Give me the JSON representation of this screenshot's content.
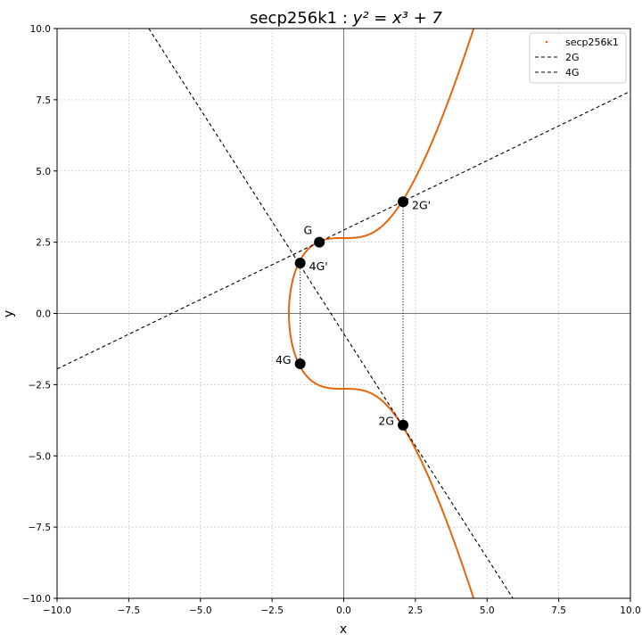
{
  "chart_data": {
    "type": "line",
    "title_main": "secp256k1 : ",
    "title_eq": "y² = x³ + 7",
    "xlabel": "x",
    "ylabel": "y",
    "xlim": [
      -10,
      10
    ],
    "ylim": [
      -10,
      10
    ],
    "x_ticks": [
      -10,
      -7.5,
      -5,
      -2.5,
      0,
      2.5,
      5,
      7.5,
      10
    ],
    "y_ticks": [
      -10,
      -7.5,
      -5,
      -2.5,
      0,
      2.5,
      5,
      7.5,
      10
    ],
    "x_tick_labels": [
      "−10.0",
      "−7.5",
      "−5.0",
      "−2.5",
      "0.0",
      "2.5",
      "5.0",
      "7.5",
      "10.0"
    ],
    "y_tick_labels": [
      "−10.0",
      "−7.5",
      "−5.0",
      "−2.5",
      "0.0",
      "2.5",
      "5.0",
      "7.5",
      "10.0"
    ],
    "grid": true,
    "legend_position": "top-right",
    "curve": {
      "name": "secp256k1",
      "color": "#e8650a",
      "equation": "y^2 = x^3 + 7"
    },
    "lines": [
      {
        "name": "2G",
        "style": "dashed",
        "color": "#000000",
        "x": [
          -10,
          10
        ],
        "y": [
          -1.95,
          7.8
        ]
      },
      {
        "name": "4G",
        "style": "dashed",
        "color": "#000000",
        "x": [
          -6.8,
          5.9
        ],
        "y": [
          10,
          -10
        ]
      }
    ],
    "vertical_dotted": [
      {
        "x": 2.07,
        "y": [
          -3.92,
          3.92
        ]
      },
      {
        "x": -1.52,
        "y": [
          -1.77,
          1.77
        ]
      }
    ],
    "points": [
      {
        "label": "G",
        "x": -0.85,
        "y": 2.5,
        "label_pos": "left"
      },
      {
        "label": "2G'",
        "x": 2.07,
        "y": 3.92,
        "label_pos": "right"
      },
      {
        "label": "2G",
        "x": 2.07,
        "y": -3.92,
        "label_pos": "left"
      },
      {
        "label": "4G'",
        "x": -1.52,
        "y": 1.77,
        "label_pos": "right"
      },
      {
        "label": "4G",
        "x": -1.52,
        "y": -1.77,
        "label_pos": "left"
      }
    ],
    "legend": [
      {
        "label": "secp256k1",
        "marker": "dot",
        "color": "#e8650a"
      },
      {
        "label": "2G",
        "marker": "dashed",
        "color": "#000000"
      },
      {
        "label": "4G",
        "marker": "dashed",
        "color": "#000000"
      }
    ]
  }
}
